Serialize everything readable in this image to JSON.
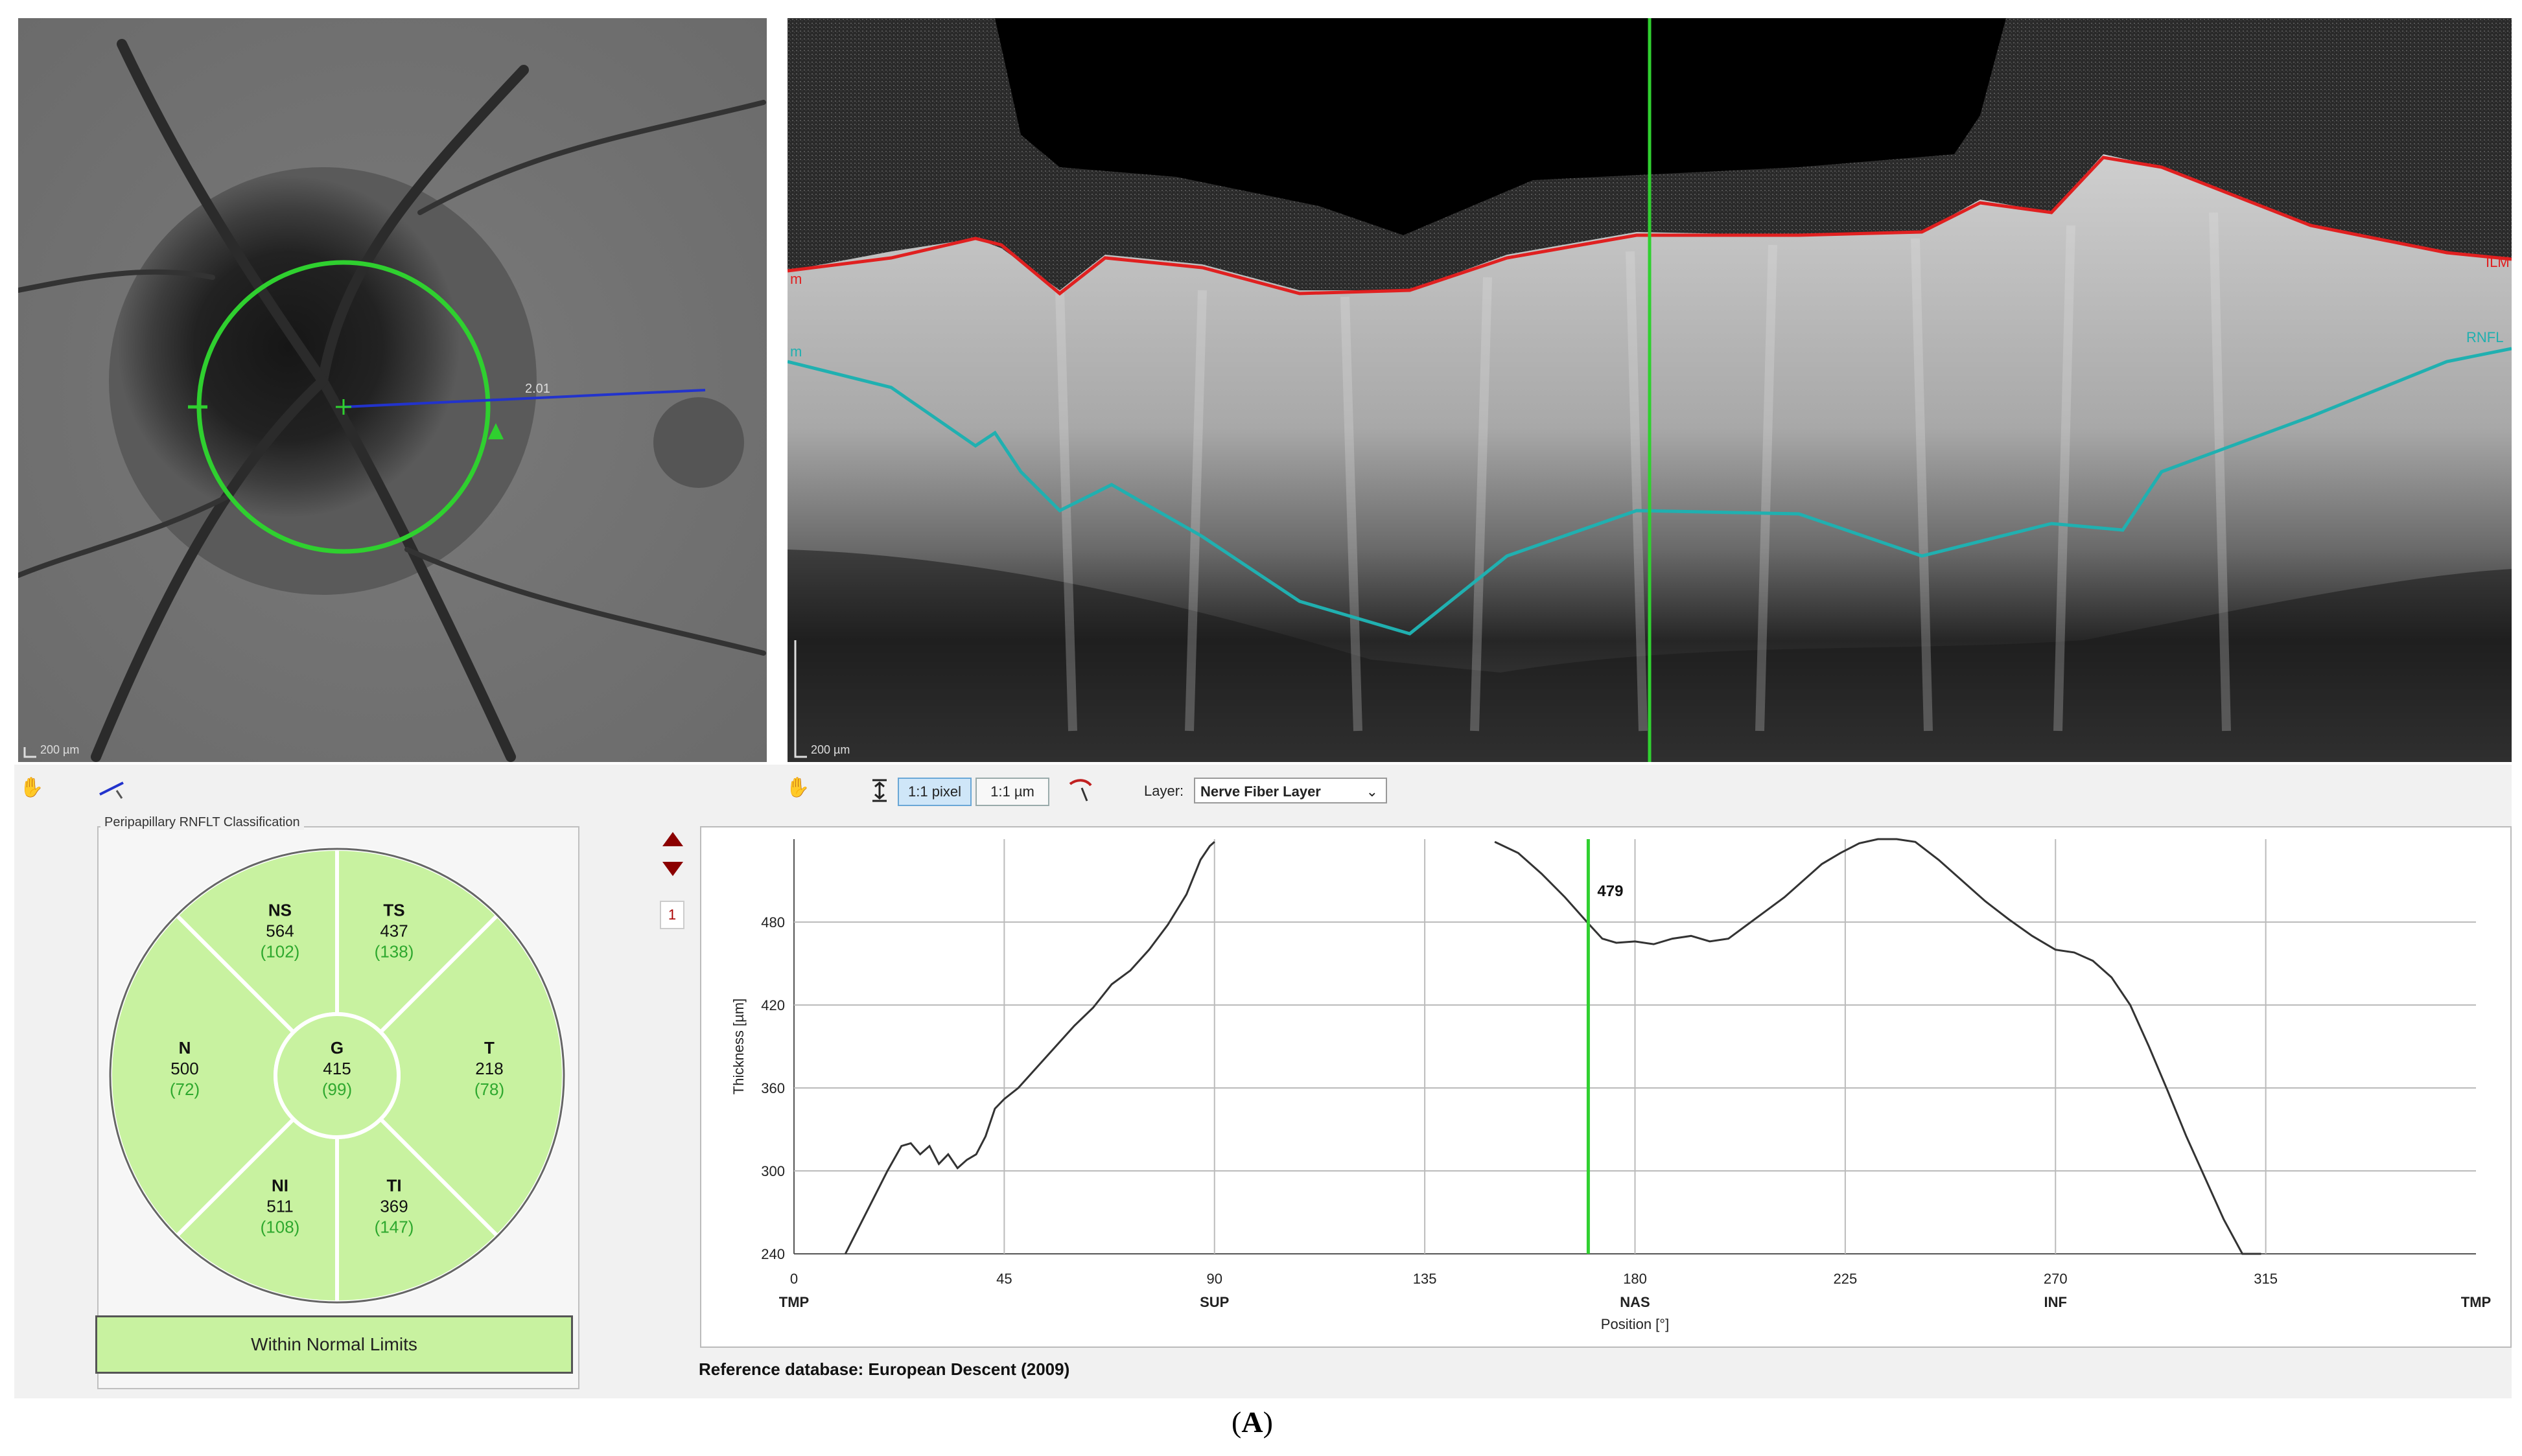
{
  "fundus": {
    "scale_label": "200 µm",
    "measure_label": "2.01"
  },
  "bscan": {
    "scale_label": "200 µm",
    "ilm_label": "ILM",
    "rnfl_label": "RNFL",
    "left_label": "m"
  },
  "toolbar": {
    "btn_1to1_pixel": "1:1 pixel",
    "btn_1to1_um": "1:1 µm",
    "layer_label": "Layer:",
    "layer_value": "Nerve Fiber Layer"
  },
  "classification": {
    "title": "Peripapillary RNFLT Classification",
    "result": "Within Normal Limits",
    "sectors": [
      {
        "id": "NS",
        "value": "564",
        "ref": "(102)"
      },
      {
        "id": "TS",
        "value": "437",
        "ref": "(138)"
      },
      {
        "id": "N",
        "value": "500",
        "ref": "(72)"
      },
      {
        "id": "G",
        "value": "415",
        "ref": "(99)"
      },
      {
        "id": "T",
        "value": "218",
        "ref": "(78)"
      },
      {
        "id": "NI",
        "value": "511",
        "ref": "(108)"
      },
      {
        "id": "TI",
        "value": "369",
        "ref": "(147)"
      }
    ],
    "colors": {
      "fill": "#c8f2a0",
      "ref_text": "#2ea82e",
      "border": "#ffffff"
    }
  },
  "page_indicator": "1",
  "graph": {
    "cursor_value_label": "479",
    "ylabel": "Thickness [µm]",
    "xlabel": "Position [°]",
    "x_ticks": [
      "0",
      "45",
      "90",
      "135",
      "180",
      "225",
      "270",
      "315"
    ],
    "y_ticks": [
      "240",
      "300",
      "360",
      "420",
      "480"
    ],
    "x_sector_labels": [
      "TMP",
      "SUP",
      "NAS",
      "INF",
      "TMP"
    ]
  },
  "chart_data": {
    "type": "line",
    "title": "",
    "xlabel": "Position [°]",
    "ylabel": "Thickness [µm]",
    "xlim": [
      0,
      360
    ],
    "ylim": [
      240,
      540
    ],
    "grid": true,
    "cursor_x": 170,
    "cursor_value": 479,
    "series": [
      {
        "x": [
          11,
          14,
          17,
          20,
          23,
          25,
          27,
          29,
          31,
          33,
          35,
          37,
          39,
          41,
          43,
          45,
          48,
          52,
          56,
          60,
          64,
          68,
          72,
          76,
          80,
          84,
          87,
          89,
          90
        ],
        "values": [
          240,
          260,
          280,
          300,
          318,
          320,
          312,
          318,
          305,
          312,
          302,
          308,
          312,
          325,
          345,
          352,
          360,
          375,
          390,
          405,
          418,
          435,
          445,
          460,
          478,
          500,
          525,
          535,
          538
        ]
      },
      {
        "x": [
          150,
          155,
          160,
          165,
          170,
          173,
          176,
          180,
          184,
          188,
          192,
          196,
          200,
          204,
          208,
          212,
          216,
          220,
          224,
          228,
          232,
          236,
          240,
          245,
          250,
          255,
          260,
          265,
          270,
          274,
          278,
          282,
          286,
          290,
          294,
          298,
          302,
          306,
          310,
          314
        ],
        "values": [
          538,
          530,
          515,
          498,
          479,
          468,
          465,
          466,
          464,
          468,
          470,
          466,
          468,
          478,
          488,
          498,
          510,
          522,
          530,
          537,
          540,
          540,
          538,
          525,
          510,
          495,
          482,
          470,
          460,
          458,
          452,
          440,
          420,
          390,
          358,
          325,
          295,
          265,
          240,
          240
        ]
      }
    ]
  }
}
